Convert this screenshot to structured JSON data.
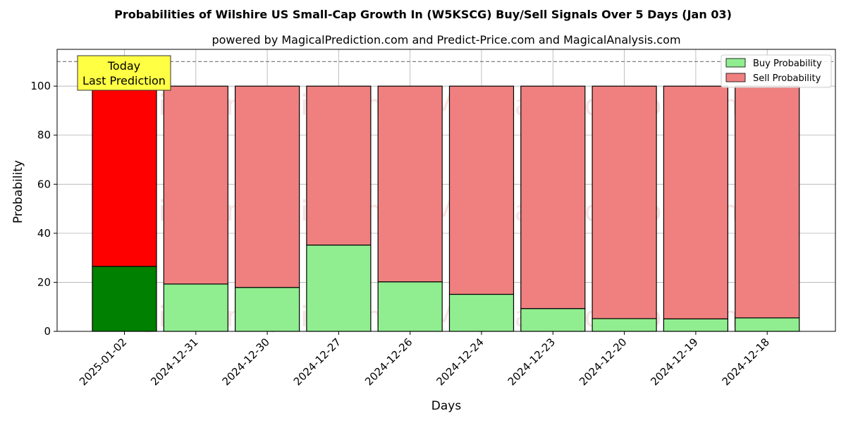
{
  "chart_data": {
    "type": "bar",
    "stacked": true,
    "title": "Probabilities of Wilshire US Small-Cap Growth In (W5KSCG) Buy/Sell Signals Over 5 Days (Jan 03)",
    "subtitle": "powered by MagicalPrediction.com and Predict-Price.com and MagicalAnalysis.com",
    "xlabel": "Days",
    "ylabel": "Probability",
    "ylim": [
      0,
      115
    ],
    "yticks": [
      0,
      20,
      40,
      60,
      80,
      100
    ],
    "reference_line": 110,
    "grid": true,
    "legend_position": "top-right",
    "categories": [
      "2025-01-02",
      "2024-12-31",
      "2024-12-30",
      "2024-12-27",
      "2024-12-26",
      "2024-12-24",
      "2024-12-23",
      "2024-12-20",
      "2024-12-19",
      "2024-12-18"
    ],
    "series": [
      {
        "name": "Buy Probability",
        "values": [
          26.5,
          19.3,
          17.9,
          35.2,
          20.2,
          15.1,
          9.3,
          5.2,
          5.1,
          5.5
        ]
      },
      {
        "name": "Sell Probability",
        "values": [
          73.5,
          80.7,
          82.1,
          64.8,
          79.8,
          84.9,
          90.7,
          94.8,
          94.9,
          94.5
        ]
      }
    ],
    "colors": {
      "buy": "#90ee90",
      "sell": "#f08080",
      "buy_highlight": "#008000",
      "sell_highlight": "#ff0000",
      "annotation_bg": "#ffff44"
    },
    "highlight_index": 0,
    "annotation": {
      "line1": "Today",
      "line2": "Last Prediction"
    },
    "watermarks": [
      "MagicalAnalysis.com",
      "MagicalPrediction.com"
    ]
  }
}
